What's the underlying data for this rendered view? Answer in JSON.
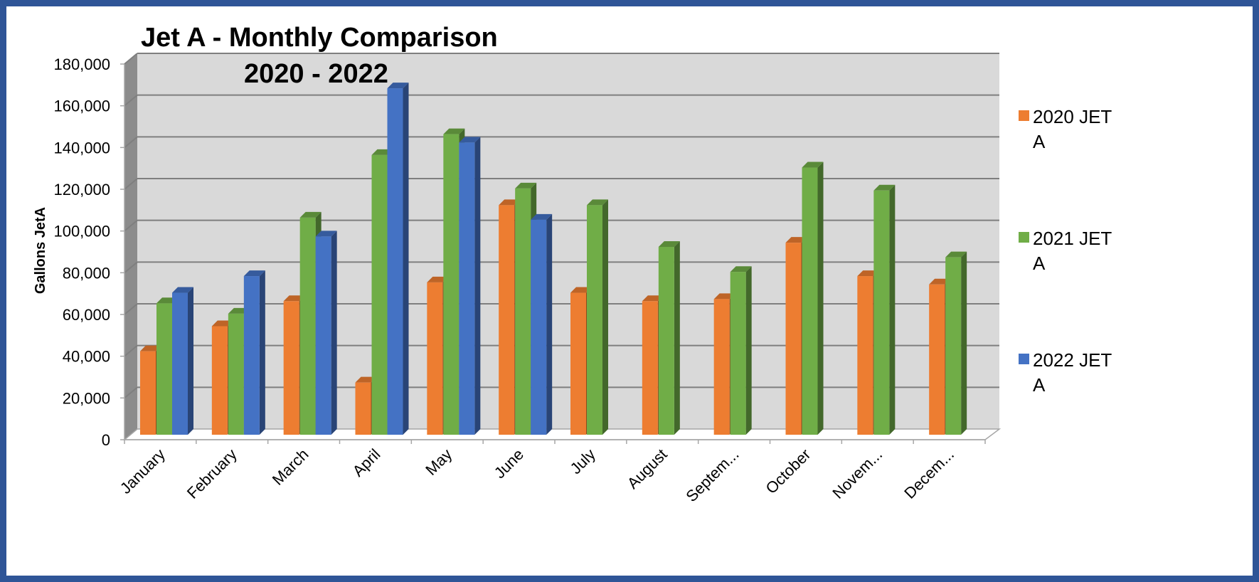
{
  "chart_data": {
    "type": "bar",
    "title_line1": "Jet A - Monthly Comparison",
    "title_line2": "2020 - 2022",
    "ylabel": "Gallons JetA",
    "xlabel": "",
    "ylim": [
      0,
      180000
    ],
    "yticks": [
      0,
      20000,
      40000,
      60000,
      80000,
      100000,
      120000,
      140000,
      160000,
      180000
    ],
    "ytick_labels": [
      "0",
      "20,000",
      "40,000",
      "60,000",
      "80,000",
      "100,000",
      "120,000",
      "140,000",
      "160,000",
      "180,000"
    ],
    "categories": [
      "January",
      "February",
      "March",
      "April",
      "May",
      "June",
      "July",
      "August",
      "Septem...",
      "October",
      "Novem...",
      "Decem..."
    ],
    "series": [
      {
        "name": "2020 JET A",
        "legend_line1": "2020 JET",
        "legend_line2": "A",
        "color": "#ed7d31",
        "values": [
          40000,
          52000,
          64000,
          25000,
          73000,
          110000,
          68000,
          64000,
          65000,
          92000,
          76000,
          72000
        ]
      },
      {
        "name": "2021 JET A",
        "legend_line1": "2021 JET",
        "legend_line2": "A",
        "color": "#70ad47",
        "values": [
          63000,
          58000,
          104000,
          134000,
          144000,
          118000,
          110000,
          90000,
          78000,
          128000,
          117000,
          85000
        ]
      },
      {
        "name": "2022 JET A",
        "legend_line1": "2022 JET",
        "legend_line2": "A",
        "color": "#4472c4",
        "values": [
          68000,
          76000,
          95000,
          166000,
          140000,
          103000,
          null,
          null,
          null,
          null,
          null,
          null
        ]
      }
    ],
    "grid": true,
    "legend_position": "right",
    "style": "3d-clustered-column",
    "colors": {
      "frame_border": "#2f5597",
      "wall": "#d9d9d9",
      "side_wall": "#8c8c8c",
      "gridline": "#7f7f7f"
    }
  }
}
